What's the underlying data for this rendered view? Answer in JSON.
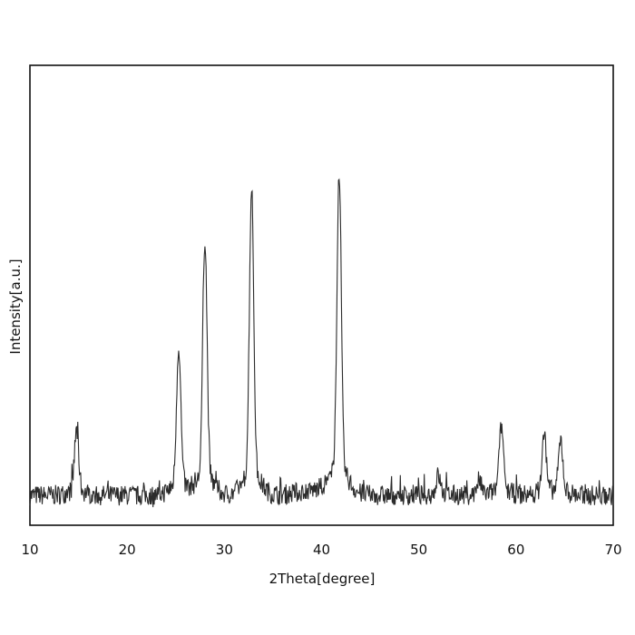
{
  "chart_data": {
    "type": "line",
    "xlabel": "2Theta[degree]",
    "ylabel": "Intensity[a.u.]",
    "xlim": [
      10,
      70
    ],
    "ylim": [
      0,
      100
    ],
    "x_ticks": [
      "10",
      "20",
      "30",
      "40",
      "50",
      "60",
      "70"
    ],
    "y_ticks_shown": false,
    "grid": false,
    "line_color": "#2b2b2b",
    "baseline_level": 6.5,
    "noise_amplitude": 2.2,
    "peaks": [
      {
        "x": 14.8,
        "height": 13
      },
      {
        "x": 25.3,
        "height": 30
      },
      {
        "x": 28.0,
        "height": 52
      },
      {
        "x": 32.8,
        "height": 62
      },
      {
        "x": 41.8,
        "height": 64
      },
      {
        "x": 52.0,
        "height": 4
      },
      {
        "x": 56.2,
        "height": 3
      },
      {
        "x": 58.5,
        "height": 14
      },
      {
        "x": 62.9,
        "height": 12
      },
      {
        "x": 64.6,
        "height": 11
      }
    ]
  }
}
